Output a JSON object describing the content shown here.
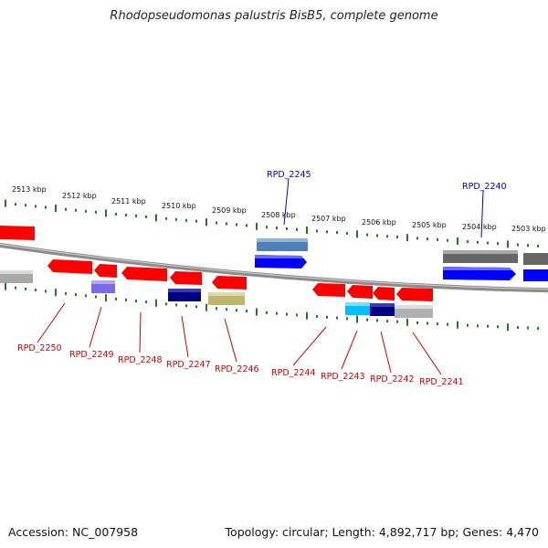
{
  "title": "Rhodopseudomonas palustris BisB5, complete genome",
  "footer": {
    "accession_label": "Accession:",
    "accession": "NC_007958",
    "topology_label": "Topology:",
    "topology": "circular",
    "length_label": "Length:",
    "length": "4,892,717 bp",
    "genes_label": "Genes:",
    "genes": "4,470"
  },
  "kbp_ticks": [
    "2513 kbp",
    "2512 kbp",
    "2511 kbp",
    "2510 kbp",
    "2509 kbp",
    "2508 kbp",
    "2507 kbp",
    "2506 kbp",
    "2505 kbp",
    "2504 kbp",
    "2503 kbp"
  ],
  "genes_top": [
    {
      "label": "RPD_2245",
      "color": "#4f7fb8"
    },
    {
      "label": "RPD_2240",
      "color": "#666666"
    }
  ],
  "genes_bottom": [
    {
      "label": "RPD_2250",
      "color": "#aaaaaa"
    },
    {
      "label": "RPD_2249",
      "color": "#7b68ee"
    },
    {
      "label": "RPD_2248",
      "color": "#ff0000"
    },
    {
      "label": "RPD_2247",
      "color": "#000080"
    },
    {
      "label": "RPD_2246",
      "color": "#bdb76b"
    },
    {
      "label": "RPD_2244",
      "color": "#ff0000"
    },
    {
      "label": "RPD_2243",
      "color": "#00bfff"
    },
    {
      "label": "RPD_2242",
      "color": "#000080"
    },
    {
      "label": "RPD_2241",
      "color": "#aaaaaa"
    }
  ],
  "label_colors": {
    "forward": "#0000cc",
    "reverse": "#cc0000",
    "scale_tick": "#1e7b1e",
    "backbone": "#777777"
  }
}
